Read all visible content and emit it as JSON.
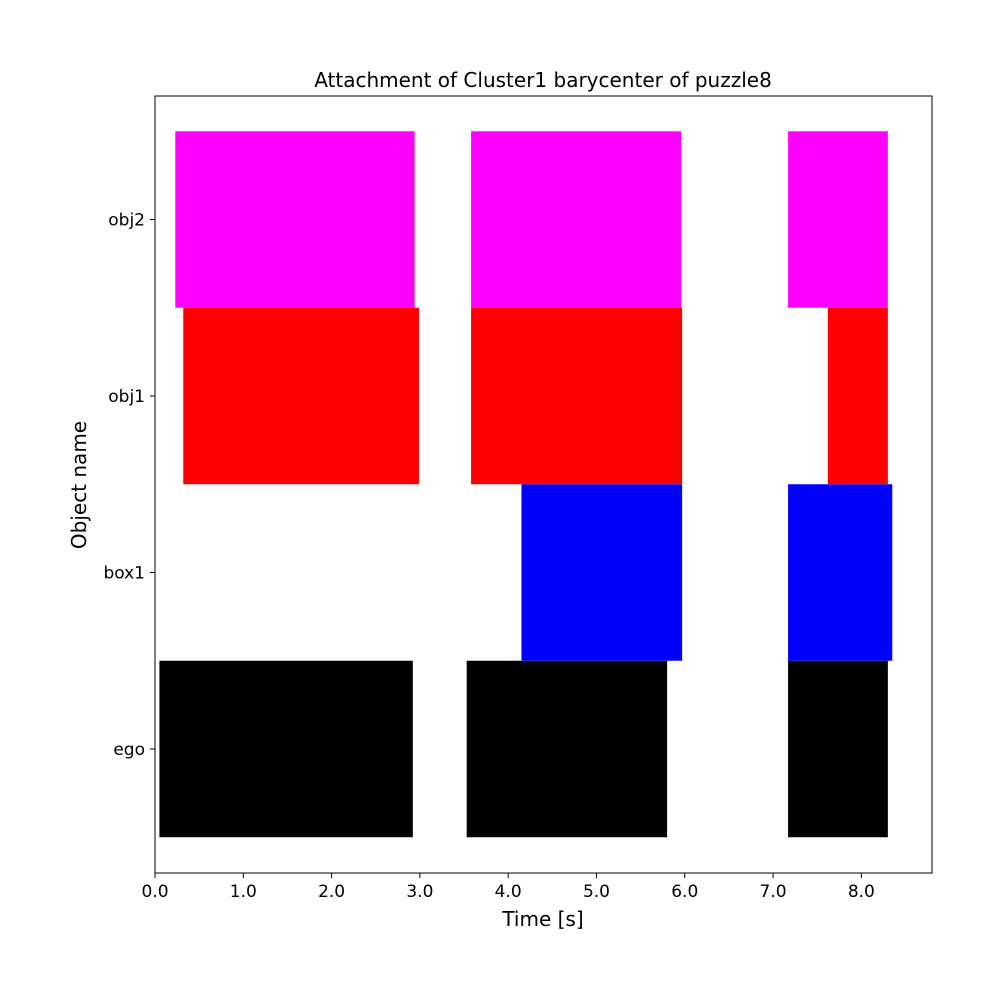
{
  "chart_data": {
    "type": "bar",
    "orientation": "horizontal-intervals",
    "title": "Attachment of Cluster1 barycenter of puzzle8",
    "xlabel": "Time [s]",
    "ylabel": "Object name",
    "xlim": [
      0.0,
      8.8
    ],
    "xticks": [
      "0.0",
      "1.0",
      "2.0",
      "3.0",
      "4.0",
      "5.0",
      "6.0",
      "7.0",
      "8.0"
    ],
    "categories": [
      "ego",
      "box1",
      "obj1",
      "obj2"
    ],
    "grid": false,
    "legend": "none",
    "series": [
      {
        "category": "ego",
        "color": "#000000",
        "intervals": [
          [
            0.05,
            2.92
          ],
          [
            3.53,
            5.8
          ],
          [
            7.17,
            8.3
          ]
        ]
      },
      {
        "category": "box1",
        "color": "#0000ff",
        "intervals": [
          [
            4.15,
            5.97
          ],
          [
            7.17,
            8.35
          ]
        ]
      },
      {
        "category": "obj1",
        "color": "#ff0000",
        "intervals": [
          [
            0.32,
            2.99
          ],
          [
            3.58,
            5.97
          ],
          [
            7.62,
            8.3
          ]
        ]
      },
      {
        "category": "obj2",
        "color": "#ff00ff",
        "intervals": [
          [
            0.23,
            2.94
          ],
          [
            3.58,
            5.96
          ],
          [
            7.17,
            8.3
          ]
        ]
      }
    ]
  }
}
